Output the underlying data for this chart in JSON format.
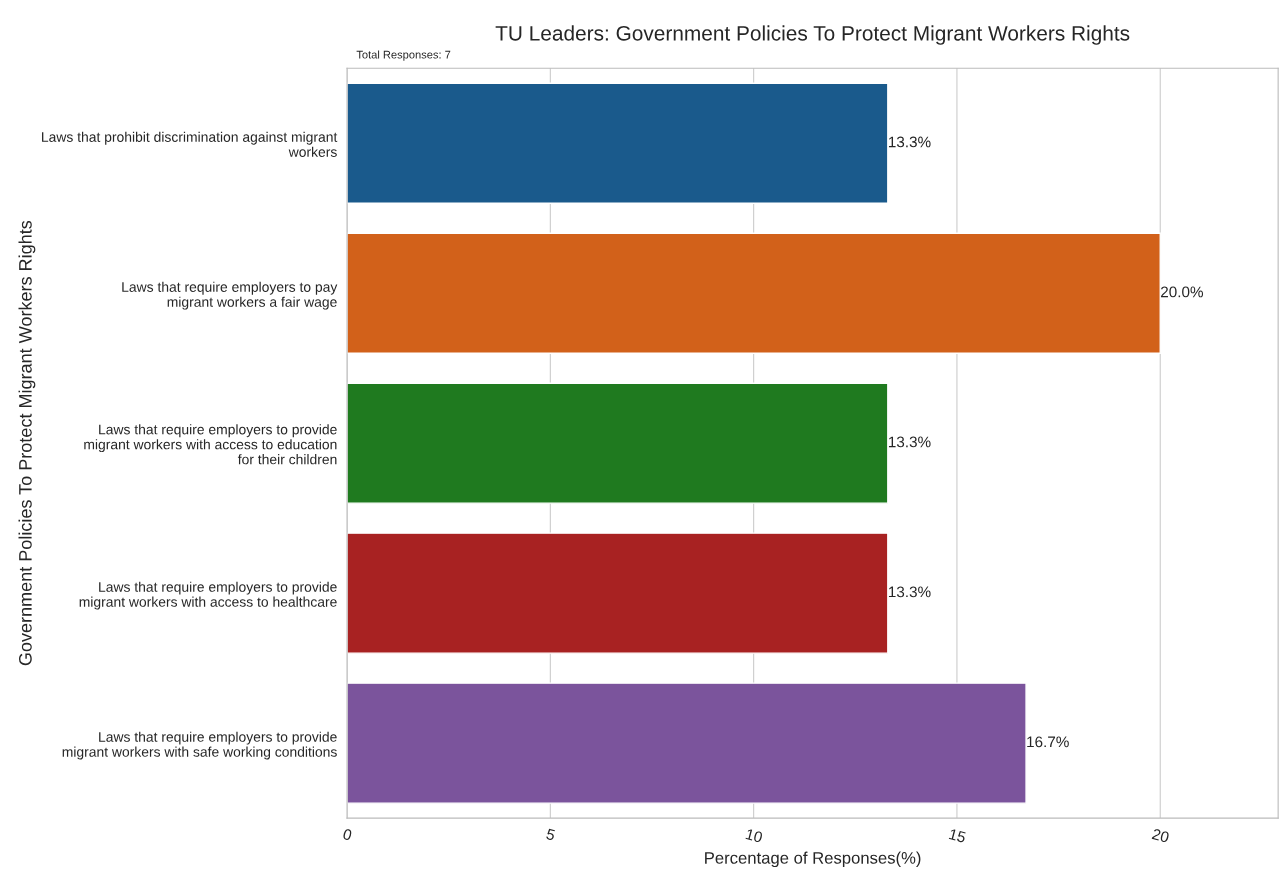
{
  "chart_data": {
    "type": "bar",
    "orientation": "horizontal",
    "title": "TU Leaders: Government Policies To Protect Migrant Workers Rights",
    "xlabel": "Percentage of Responses(%)",
    "ylabel": "Government Policies To Protect Migrant Workers Rights",
    "annotations": [
      "Total Responses: 7"
    ],
    "categories": [
      "Laws that prohibit discrimination against migrant\nworkers",
      "Laws that require employers to pay\nmigrant workers a fair wage",
      "Laws that require employers to provide\nmigrant workers with access to education\nfor their children",
      "Laws that require employers to provide\nmigrant workers with access to healthcare",
      "Laws that require employers to provide\nmigrant workers with safe working conditions"
    ],
    "values": [
      13.3,
      20.0,
      13.3,
      13.3,
      16.7
    ],
    "value_labels": [
      "13.3%",
      "20.0%",
      "13.3%",
      "13.3%",
      "16.7%"
    ],
    "colors": [
      "#1a5a8c",
      "#d2611a",
      "#1f7a1f",
      "#a82222",
      "#7b549c"
    ],
    "xlim": [
      0,
      22.9
    ],
    "xticks": [
      0,
      5,
      10,
      15,
      20
    ],
    "grid": "x",
    "legend": false
  }
}
